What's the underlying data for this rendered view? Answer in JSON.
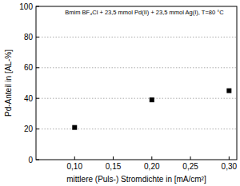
{
  "chart_data": {
    "type": "scatter",
    "title": "Bmim BF₄Cl + 23,5 mmol Pd(II) + 23,5 mmol Ag(I), T=80 °C",
    "x_label": "mittlere (Puls-) Stromdichte in [mA/cm²]",
    "y_label": "Pd-Anteil in [AL-%]",
    "x": [
      0.1,
      0.2,
      0.3
    ],
    "values": [
      21,
      39,
      45
    ],
    "color": "#000000",
    "marker": "square",
    "xlim": [
      0.05,
      0.31
    ],
    "ylim": [
      0,
      100
    ],
    "xticks": [
      {
        "value": 0.1,
        "label": "0,10"
      },
      {
        "value": 0.15,
        "label": "0,15"
      },
      {
        "value": 0.2,
        "label": "0,20"
      },
      {
        "value": 0.25,
        "label": "0,25"
      },
      {
        "value": 0.3,
        "label": "0,30"
      }
    ],
    "yticks": [
      0,
      20,
      40,
      60,
      80,
      100
    ],
    "grid": true
  }
}
